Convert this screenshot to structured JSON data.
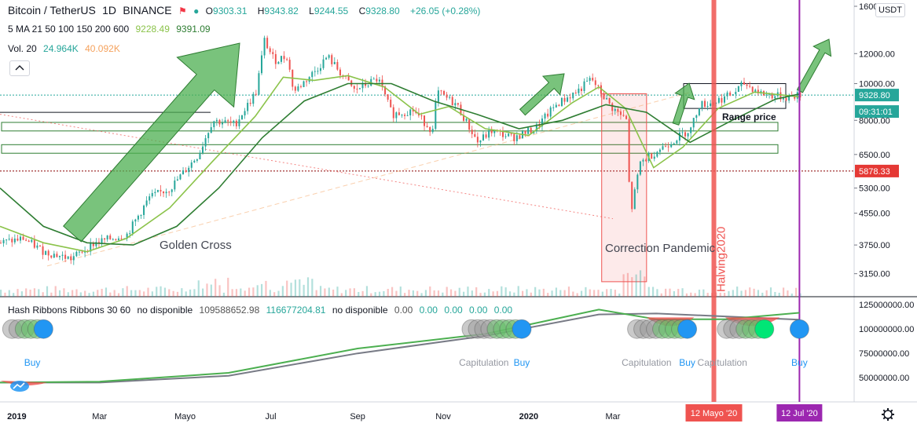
{
  "header": {
    "symbol": "Bitcoin / TetherUS",
    "interval": "1D",
    "exchange": "BINANCE",
    "open": "9303.31",
    "high": "9343.82",
    "low": "9244.55",
    "close": "9328.80",
    "change": "+26.05 (+0.28%)",
    "ma_label": "5 MA 21 50 100 150 200 600",
    "ma_values": [
      "9228.49",
      "9391.09"
    ],
    "vol_label": "Vol. 20",
    "vol_values": [
      "24.964K",
      "40.092K"
    ]
  },
  "hash_ribbons": {
    "label": "Hash Ribbons Ribbons 30 60",
    "values_text": [
      "no disponible",
      "109588652.98",
      "116677204.81",
      "no disponible",
      "0.00",
      "0.00",
      "0.00",
      "0.00",
      "0.00"
    ]
  },
  "colors": {
    "up": "#26a69a",
    "down": "#ef5350",
    "ma_fast": "#8bc34a",
    "ma_slow": "#2e7d32",
    "arrow": "#4caf50",
    "halving": "#ef5350",
    "current_date": "#9c27b0",
    "hash_fast": "#4caf50",
    "hash_slow": "#787b86",
    "buy": "#2196f3"
  },
  "chart_data": {
    "type": "candlestick",
    "yscale": "log",
    "ylim": [
      2900,
      16000
    ],
    "y_ticks": [
      "16000.00",
      "12000.00",
      "10000.00",
      "8000.00",
      "6500.00",
      "5300.00",
      "4550.00",
      "3750.00",
      "3150.00"
    ],
    "y_tick_values": [
      16000,
      12000,
      10000,
      8000,
      6500,
      5300,
      4550,
      3750,
      3150
    ],
    "currency_label": "USDT",
    "last_price_label": "9328.80",
    "last_price_value": 9328.8,
    "countdown": "09:31:01",
    "level_label": "5878.33",
    "level_value": 5878.33,
    "x_ticks": [
      "2019",
      "Mar",
      "Mayo",
      "Jul",
      "Sep",
      "Nov",
      "2020",
      "Mar"
    ],
    "x_tick_dates": [
      "2019-01-01",
      "2019-03-01",
      "2019-05-01",
      "2019-07-01",
      "2019-09-01",
      "2019-11-01",
      "2020-01-01",
      "2020-03-01"
    ],
    "x_range": [
      "2018-12-20",
      "2020-08-20"
    ],
    "date_badges": [
      {
        "label": "12 Mayo '20",
        "date": "2020-05-12",
        "kind": "halving"
      },
      {
        "label": "12 Jul '20",
        "date": "2020-07-12",
        "kind": "current"
      }
    ],
    "price_path": [
      [
        "2018-12-20",
        3800
      ],
      [
        "2019-01-05",
        3900
      ],
      [
        "2019-01-20",
        3600
      ],
      [
        "2019-02-08",
        3450
      ],
      [
        "2019-02-25",
        3800
      ],
      [
        "2019-03-20",
        4000
      ],
      [
        "2019-04-05",
        5000
      ],
      [
        "2019-04-20",
        5300
      ],
      [
        "2019-05-10",
        6500
      ],
      [
        "2019-05-20",
        8000
      ],
      [
        "2019-06-05",
        7800
      ],
      [
        "2019-06-20",
        9500
      ],
      [
        "2019-06-26",
        13000
      ],
      [
        "2019-07-03",
        11500
      ],
      [
        "2019-07-12",
        11800
      ],
      [
        "2019-07-17",
        9500
      ],
      [
        "2019-08-01",
        10800
      ],
      [
        "2019-08-10",
        11800
      ],
      [
        "2019-08-29",
        9600
      ],
      [
        "2019-09-15",
        10300
      ],
      [
        "2019-09-25",
        8300
      ],
      [
        "2019-10-10",
        8500
      ],
      [
        "2019-10-24",
        7500
      ],
      [
        "2019-10-27",
        9500
      ],
      [
        "2019-11-10",
        8800
      ],
      [
        "2019-11-25",
        7000
      ],
      [
        "2019-12-05",
        7500
      ],
      [
        "2019-12-20",
        7200
      ],
      [
        "2020-01-05",
        7600
      ],
      [
        "2020-01-20",
        8800
      ],
      [
        "2020-02-05",
        9600
      ],
      [
        "2020-02-14",
        10300
      ],
      [
        "2020-02-28",
        8700
      ],
      [
        "2020-03-10",
        8000
      ],
      [
        "2020-03-13",
        4500
      ],
      [
        "2020-03-20",
        6200
      ],
      [
        "2020-04-05",
        6800
      ],
      [
        "2020-04-25",
        7600
      ],
      [
        "2020-05-01",
        8800
      ],
      [
        "2020-05-10",
        8900
      ],
      [
        "2020-05-25",
        9400
      ],
      [
        "2020-06-02",
        10000
      ],
      [
        "2020-06-15",
        9400
      ],
      [
        "2020-07-01",
        9200
      ],
      [
        "2020-07-12",
        9328.8
      ]
    ],
    "ma_fast_path": [
      [
        "2018-12-20",
        4200
      ],
      [
        "2019-01-20",
        3800
      ],
      [
        "2019-02-20",
        3600
      ],
      [
        "2019-03-20",
        3900
      ],
      [
        "2019-04-20",
        4700
      ],
      [
        "2019-05-20",
        6200
      ],
      [
        "2019-06-20",
        8200
      ],
      [
        "2019-07-10",
        10400
      ],
      [
        "2019-08-01",
        10200
      ],
      [
        "2019-08-25",
        10500
      ],
      [
        "2019-09-20",
        9800
      ],
      [
        "2019-10-15",
        8300
      ],
      [
        "2019-11-05",
        8700
      ],
      [
        "2019-12-01",
        7600
      ],
      [
        "2020-01-01",
        7300
      ],
      [
        "2020-02-01",
        8900
      ],
      [
        "2020-02-20",
        9800
      ],
      [
        "2020-03-10",
        8600
      ],
      [
        "2020-03-30",
        6000
      ],
      [
        "2020-04-20",
        6800
      ],
      [
        "2020-05-15",
        8600
      ],
      [
        "2020-06-10",
        9500
      ],
      [
        "2020-07-12",
        9228.49
      ]
    ],
    "ma_slow_path": [
      [
        "2018-12-20",
        5300
      ],
      [
        "2019-01-20",
        4200
      ],
      [
        "2019-02-20",
        3800
      ],
      [
        "2019-03-25",
        3750
      ],
      [
        "2019-04-25",
        4200
      ],
      [
        "2019-05-25",
        5300
      ],
      [
        "2019-06-25",
        7200
      ],
      [
        "2019-07-25",
        9000
      ],
      [
        "2019-08-25",
        10000
      ],
      [
        "2019-09-25",
        10000
      ],
      [
        "2019-10-25",
        9000
      ],
      [
        "2019-11-25",
        8300
      ],
      [
        "2019-12-25",
        7600
      ],
      [
        "2020-01-25",
        8000
      ],
      [
        "2020-02-25",
        8800
      ],
      [
        "2020-03-25",
        8400
      ],
      [
        "2020-04-25",
        7000
      ],
      [
        "2020-05-25",
        8000
      ],
      [
        "2020-06-25",
        9100
      ],
      [
        "2020-07-12",
        9391.09
      ]
    ],
    "annotations": [
      "Golden Cross",
      "Correction Pandemic",
      "Halving2020",
      "Range price"
    ],
    "hash_ribbons_lines": {
      "fast": [
        [
          "2018-12-20",
          45000000
        ],
        [
          "2019-03-01",
          46000000
        ],
        [
          "2019-06-01",
          55000000
        ],
        [
          "2019-09-01",
          80000000
        ],
        [
          "2019-12-01",
          95000000
        ],
        [
          "2020-02-20",
          120000000
        ],
        [
          "2020-04-01",
          110000000
        ],
        [
          "2020-05-20",
          110000000
        ],
        [
          "2020-07-12",
          116677204.81
        ]
      ],
      "slow": [
        [
          "2018-12-20",
          45000000
        ],
        [
          "2019-03-01",
          45000000
        ],
        [
          "2019-06-01",
          52000000
        ],
        [
          "2019-09-01",
          75000000
        ],
        [
          "2019-12-01",
          93000000
        ],
        [
          "2020-02-20",
          115000000
        ],
        [
          "2020-04-01",
          116000000
        ],
        [
          "2020-05-20",
          113000000
        ],
        [
          "2020-07-12",
          109588652.98
        ]
      ]
    },
    "hash_y_ticks": [
      "125000000.00",
      "100000000.00",
      "75000000.00",
      "50000000.00"
    ],
    "hash_y_tick_values": [
      125000000,
      100000000,
      75000000,
      50000000
    ],
    "hash_labels": [
      {
        "text": "Buy",
        "date": "2019-01-12"
      },
      {
        "text": "Capitulation",
        "date": "2019-11-30"
      },
      {
        "text": "Buy",
        "date": "2019-12-27"
      },
      {
        "text": "Capitulation",
        "date": "2020-03-25"
      },
      {
        "text": "Buy",
        "date": "2020-04-23"
      },
      {
        "text": "Capitulation",
        "date": "2020-05-18"
      },
      {
        "text": "Buy",
        "date": "2020-07-12"
      }
    ]
  }
}
